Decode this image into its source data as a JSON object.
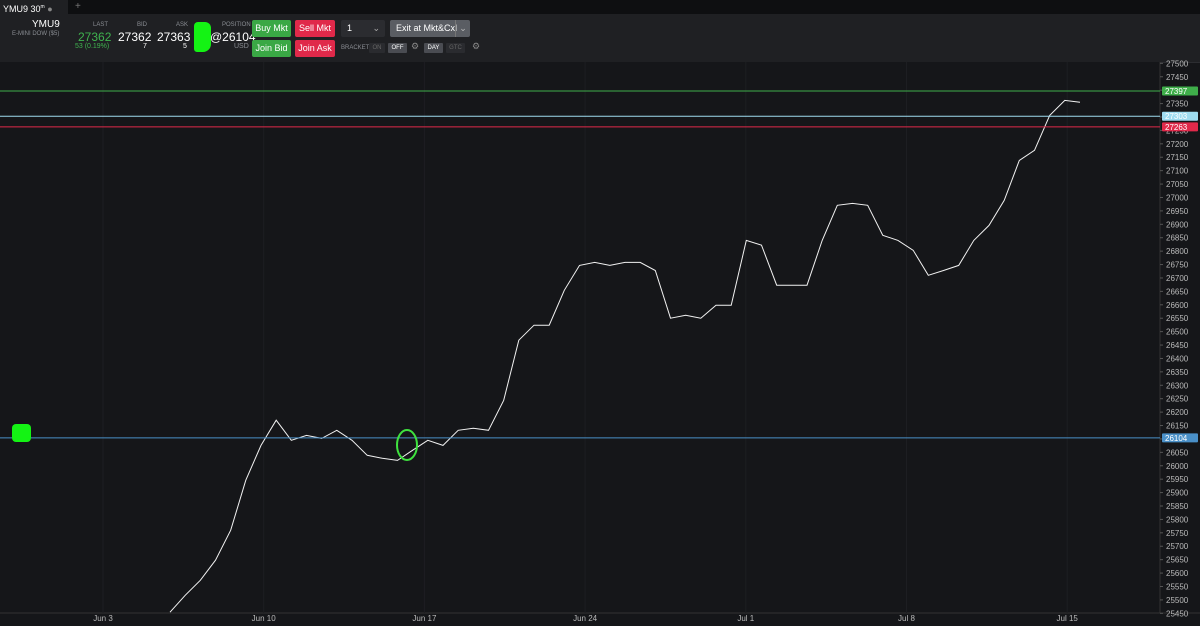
{
  "tab": {
    "symbol": "YMU9 30",
    "suffix": "m"
  },
  "header": {
    "symbol": "YMU9",
    "description": "E-MINI DOW ($5)",
    "last_label": "LAST",
    "last": 27362,
    "change": "53 (0.19%)",
    "bid_label": "BID",
    "bid": 27362,
    "bid_size": 7,
    "ask_label": "ASK",
    "ask": 27363,
    "ask_size": 5,
    "position_label": "POSITION",
    "position": "@26104",
    "currency": "USD"
  },
  "buttons": {
    "buy_mkt": "Buy Mkt",
    "sell_mkt": "Sell Mkt",
    "join_bid": "Join Bid",
    "join_ask": "Join Ask",
    "quantity": "1",
    "exit": "Exit at Mkt&Cxl",
    "brackets": "BRACKETS",
    "on": "ON",
    "off": "OFF",
    "day": "DAY",
    "gtc": "GTC"
  },
  "chart": {
    "ylim": [
      25440,
      27505
    ],
    "yticks": [
      27500,
      27450,
      27400,
      27350,
      27300,
      27250,
      27200,
      27150,
      27100,
      27050,
      27000,
      26950,
      26900,
      26850,
      26800,
      26750,
      26700,
      26650,
      26600,
      26550,
      26500,
      26450,
      26400,
      26350,
      26300,
      26250,
      26200,
      26150,
      26100,
      26050,
      26000,
      25950,
      25900,
      25850,
      25800,
      25750,
      25700,
      25650,
      25600,
      25550,
      25500,
      25450
    ],
    "x_labels": [
      "Jun 3",
      "Jun 10",
      "Jun 17",
      "Jun 24",
      "Jul 1",
      "Jul 8",
      "Jul 15"
    ],
    "price": [
      25454,
      25517,
      25573,
      25648,
      25760,
      25946,
      26076,
      26170,
      26095,
      26113,
      26102,
      26132,
      26095,
      26039,
      26028,
      26020,
      26058,
      26095,
      26076,
      26132,
      26140,
      26132,
      26244,
      26468,
      26524,
      26524,
      26654,
      26747,
      26758,
      26747,
      26758,
      26758,
      26728,
      26550,
      26561,
      26550,
      26598,
      26598,
      26840,
      26822,
      26673,
      26673,
      26673,
      26840,
      26971,
      26978,
      26971,
      26859,
      26840,
      26803,
      26710,
      26728,
      26747,
      26840,
      26896,
      26989,
      27138,
      27176,
      27306,
      27362,
      27355
    ],
    "levels": [
      {
        "value": 27397,
        "color": "#3fae4a"
      },
      {
        "value": 27303,
        "color": "#9fdcf0"
      },
      {
        "value": 27263,
        "color": "#e0294a"
      },
      {
        "value": 26104,
        "color": "#4a90c8"
      }
    ]
  }
}
